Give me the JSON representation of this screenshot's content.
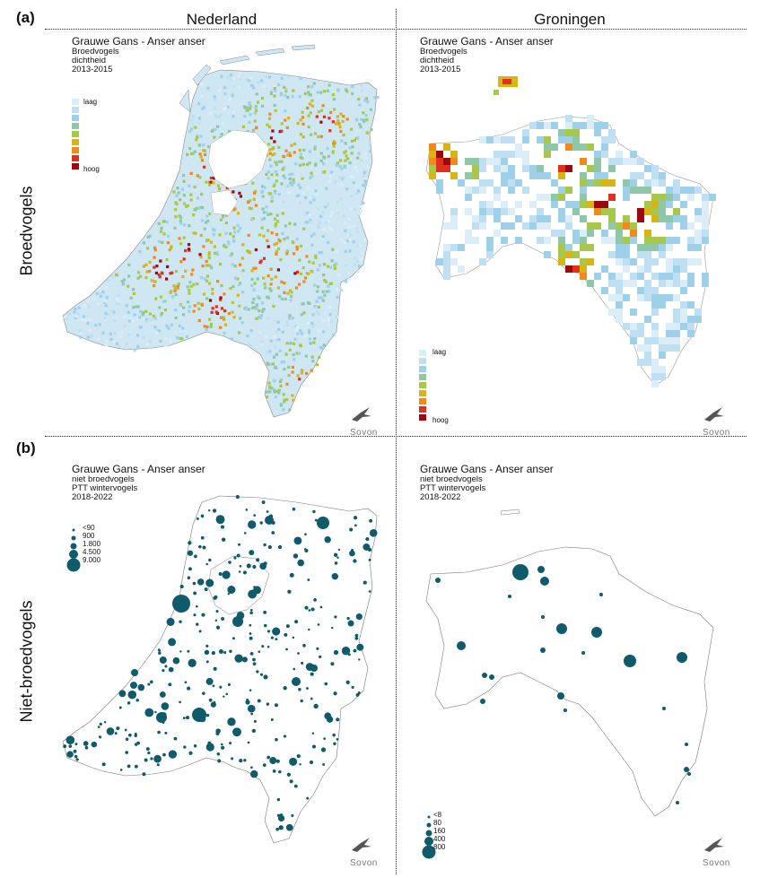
{
  "panels": {
    "a_letter": "(a)",
    "b_letter": "(b)",
    "col_left": "Nederland",
    "col_right": "Groningen",
    "row_top": "Broedvogels",
    "row_bottom": "Niet-broedvogels"
  },
  "maps": {
    "nl_breeding": {
      "title": "Grauwe Gans - Anser anser",
      "line1": "Broedvogels",
      "line2": "dichtheid",
      "line3": "2013-2015",
      "legend_low": "laag",
      "legend_high": "hoog"
    },
    "gr_breeding": {
      "title": "Grauwe Gans - Anser anser",
      "line1": "Broedvogels",
      "line2": "dichtheid",
      "line3": "2013-2015",
      "legend_low": "laag",
      "legend_high": "hoog"
    },
    "nl_nonbreeding": {
      "title": "Grauwe Gans - Anser anser",
      "line1": "niet broedvogels",
      "line2": "PTT wintervogels",
      "line3": "2018-2022",
      "legend": [
        "<90",
        "900",
        "1.800",
        "4.500",
        "9.000"
      ]
    },
    "gr_nonbreeding": {
      "title": "Grauwe Gans - Anser anser",
      "line1": "niet broedvogels",
      "line2": "PTT wintervogels",
      "line3": "2018-2022",
      "legend": [
        "<8",
        "80",
        "160",
        "400",
        "800"
      ]
    }
  },
  "density_colors": [
    "#dbeef8",
    "#bfe0f2",
    "#9fd0ea",
    "#8fc8a8",
    "#a7c84a",
    "#d8b414",
    "#f08a1c",
    "#e0301e",
    "#9c0a10"
  ],
  "dot_color": "#0f5a6b",
  "logo_text": "Sovon"
}
